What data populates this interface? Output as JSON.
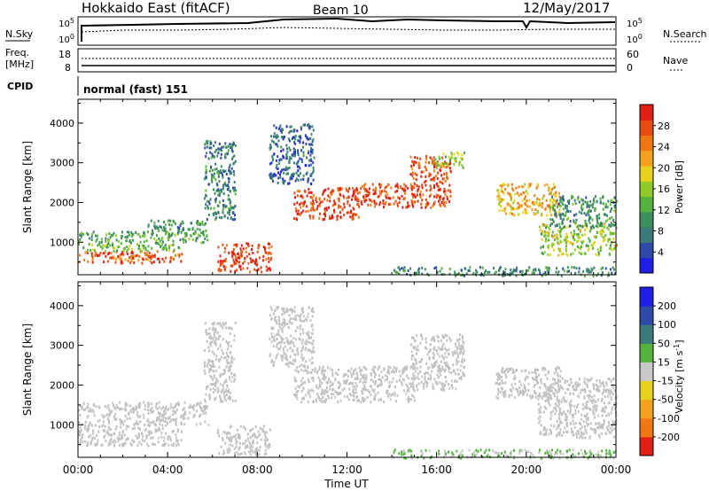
{
  "header": {
    "station": "Hokkaido East (fitACF)",
    "beam": "Beam 10",
    "date": "12/May/2017"
  },
  "top_panels": {
    "nsky_label": "N.Sky",
    "nsearch_label": "N.Search",
    "freq_label_1": "Freq.",
    "freq_label_2": "[MHz]",
    "nave_label": "Nave",
    "cpid_label": "CPID",
    "cpid_value": "normal (fast) 151",
    "noise_ticks_left": [
      "10^5",
      "10^0"
    ],
    "noise_ticks_right": [
      "10^5",
      "10^0"
    ],
    "freq_ticks": [
      "18",
      "8"
    ],
    "nave_ticks": [
      "60",
      "0"
    ]
  },
  "chart_data": [
    {
      "type": "heatmap",
      "title": "",
      "quantity": "Power",
      "xlabel": "Time UT",
      "ylabel": "Slant Range [km]",
      "x_ticks": [
        "00:00",
        "04:00",
        "08:00",
        "12:00",
        "16:00",
        "20:00",
        "00:00"
      ],
      "xlim_hours": [
        0,
        24
      ],
      "y_ticks": [
        1000,
        2000,
        3000,
        4000
      ],
      "ylim": [
        180,
        4600
      ],
      "colorbar": {
        "label": "Power [dB]",
        "range": [
          0,
          32
        ],
        "ticks": [
          "4",
          "8",
          "12",
          "16",
          "20",
          "24",
          "28"
        ],
        "colors": [
          "#1e1ee6",
          "#2e4aa8",
          "#3a7a7a",
          "#3c8f5a",
          "#53b33c",
          "#8fcc2a",
          "#e6d21e",
          "#f5a01e",
          "#f07814",
          "#e84a14",
          "#e01e14"
        ]
      },
      "regions": [
        {
          "t": [
            0.0,
            4.6
          ],
          "r": [
            500,
            800
          ],
          "v": 27
        },
        {
          "t": [
            0.0,
            4.6
          ],
          "r": [
            800,
            1000
          ],
          "v": 14
        },
        {
          "t": [
            0.0,
            5.8
          ],
          "r": [
            1000,
            1300
          ],
          "v": 12
        },
        {
          "t": [
            3.0,
            5.8
          ],
          "r": [
            1300,
            1600
          ],
          "v": 10
        },
        {
          "t": [
            6.2,
            8.6
          ],
          "r": [
            280,
            1000
          ],
          "v": 29
        },
        {
          "t": [
            5.6,
            7.0
          ],
          "r": [
            1600,
            3600
          ],
          "v": 8
        },
        {
          "t": [
            8.5,
            10.5
          ],
          "r": [
            2500,
            4000
          ],
          "v": 6
        },
        {
          "t": [
            9.6,
            12.5
          ],
          "r": [
            1600,
            2400
          ],
          "v": 29
        },
        {
          "t": [
            12.5,
            15.0
          ],
          "r": [
            1900,
            2500
          ],
          "v": 28
        },
        {
          "t": [
            14.8,
            16.6
          ],
          "r": [
            1900,
            3200
          ],
          "v": 28
        },
        {
          "t": [
            15.9,
            17.2
          ],
          "r": [
            2900,
            3300
          ],
          "v": 16
        },
        {
          "t": [
            18.6,
            21.5
          ],
          "r": [
            1700,
            2500
          ],
          "v": 21
        },
        {
          "t": [
            20.5,
            24.0
          ],
          "r": [
            700,
            1500
          ],
          "v": 16
        },
        {
          "t": [
            21.0,
            24.0
          ],
          "r": [
            1400,
            2200
          ],
          "v": 10
        },
        {
          "t": [
            14.0,
            24.0
          ],
          "r": [
            180,
            400
          ],
          "v": 9
        }
      ]
    },
    {
      "type": "heatmap",
      "title": "",
      "quantity": "Velocity",
      "xlabel": "Time UT",
      "ylabel": "Slant Range [km]",
      "x_ticks": [
        "00:00",
        "04:00",
        "08:00",
        "12:00",
        "16:00",
        "20:00",
        "00:00"
      ],
      "xlim_hours": [
        0,
        24
      ],
      "y_ticks": [
        1000,
        2000,
        3000,
        4000
      ],
      "ylim": [
        180,
        4600
      ],
      "colorbar": {
        "label": "Velocity [m s^-1]",
        "range": [
          -250,
          250
        ],
        "ticks": [
          "200",
          "100",
          "50",
          "15",
          "-15",
          "-50",
          "-100",
          "-200"
        ],
        "colors": [
          "#e01e14",
          "#f07814",
          "#f5a01e",
          "#e6d21e",
          "#c8c8c8",
          "#53b33c",
          "#3a7a7a",
          "#2e4aa8",
          "#1e1ee6"
        ]
      },
      "regions": [
        {
          "t": [
            0.0,
            4.6
          ],
          "r": [
            500,
            1000
          ],
          "v": 0
        },
        {
          "t": [
            0.0,
            5.8
          ],
          "r": [
            1000,
            1600
          ],
          "v": 0
        },
        {
          "t": [
            6.2,
            8.6
          ],
          "r": [
            280,
            1000
          ],
          "v": 0
        },
        {
          "t": [
            5.6,
            7.0
          ],
          "r": [
            1600,
            3600
          ],
          "v": 0
        },
        {
          "t": [
            8.5,
            10.5
          ],
          "r": [
            2500,
            4000
          ],
          "v": 0
        },
        {
          "t": [
            9.6,
            15.0
          ],
          "r": [
            1600,
            2500
          ],
          "v": 0
        },
        {
          "t": [
            14.8,
            17.2
          ],
          "r": [
            1900,
            3300
          ],
          "v": 0
        },
        {
          "t": [
            18.6,
            21.5
          ],
          "r": [
            1700,
            2500
          ],
          "v": 0
        },
        {
          "t": [
            20.5,
            24.0
          ],
          "r": [
            700,
            2200
          ],
          "v": 0
        },
        {
          "t": [
            14.0,
            24.0
          ],
          "r": [
            180,
            400
          ],
          "v": 30
        }
      ]
    }
  ]
}
